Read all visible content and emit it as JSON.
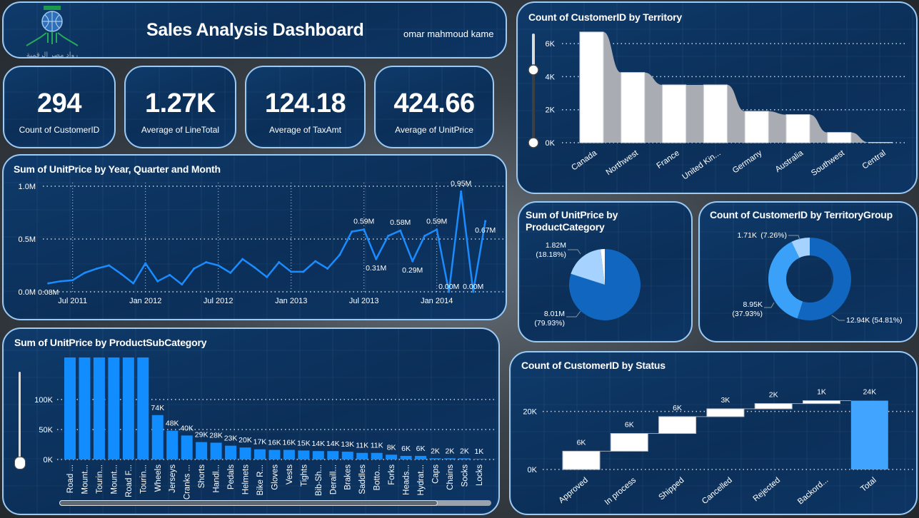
{
  "header": {
    "title": "Sales Analysis Dashboard",
    "author": "omar mahmoud kame",
    "logo_text": "رواد مصر الرقمية"
  },
  "kpis": [
    {
      "value": "294",
      "label": "Count of CustomerID"
    },
    {
      "value": "1.27K",
      "label": "Average of LineTotal"
    },
    {
      "value": "124.18",
      "label": "Average of TaxAmt"
    },
    {
      "value": "424.66",
      "label": "Average of UnitPrice"
    }
  ],
  "colors": {
    "line": "#1a8cff",
    "bar": "#118dff",
    "white_bar": "#ffffff",
    "ribbon": "#a9adb3",
    "total": "#41a4ff",
    "pie_dark": "#1167c0",
    "pie_mid": "#3ba0f8",
    "pie_light": "#a5d2ff",
    "panel_border": "#9ccaf3"
  },
  "chart_data": [
    {
      "type": "line",
      "title": "Sum of UnitPrice by Year, Quarter and Month",
      "x": [
        "2011-05",
        "2011-06",
        "2011-07",
        "2011-08",
        "2011-09",
        "2011-10",
        "2011-11",
        "2011-12",
        "2012-01",
        "2012-02",
        "2012-03",
        "2012-04",
        "2012-05",
        "2012-06",
        "2012-07",
        "2012-08",
        "2012-09",
        "2012-10",
        "2012-11",
        "2012-12",
        "2013-01",
        "2013-02",
        "2013-03",
        "2013-04",
        "2013-05",
        "2013-06",
        "2013-07",
        "2013-08",
        "2013-09",
        "2013-10",
        "2013-11",
        "2013-12",
        "2014-01",
        "2014-02",
        "2014-03",
        "2014-04",
        "2014-05"
      ],
      "values": [
        80000,
        100000,
        110000,
        180000,
        220000,
        250000,
        170000,
        80000,
        270000,
        100000,
        160000,
        70000,
        220000,
        280000,
        250000,
        180000,
        310000,
        230000,
        140000,
        280000,
        190000,
        190000,
        290000,
        220000,
        350000,
        570000,
        590000,
        310000,
        530000,
        580000,
        290000,
        530000,
        590000,
        0,
        950000,
        0,
        670000
      ],
      "data_labels": [
        "0.08M",
        "",
        "",
        "",
        "",
        "",
        "",
        "",
        "",
        "",
        "",
        "",
        "",
        "",
        "",
        "",
        "",
        "",
        "",
        "",
        "",
        "",
        "",
        "",
        "",
        "",
        "0.59M",
        "0.31M",
        "",
        "0.58M",
        "0.29M",
        "",
        "0.59M",
        "0.00M",
        "0.95M",
        "0.00M",
        "0.67M"
      ],
      "yticks": [
        {
          "value": 0,
          "label": "0.0M"
        },
        {
          "value": 500000,
          "label": "0.5M"
        },
        {
          "value": 1000000,
          "label": "1.0M"
        }
      ],
      "xticks": [
        {
          "x": "2011-07",
          "label": "Jul 2011"
        },
        {
          "x": "2012-01",
          "label": "Jan 2012"
        },
        {
          "x": "2012-07",
          "label": "Jul 2012"
        },
        {
          "x": "2013-01",
          "label": "Jan 2013"
        },
        {
          "x": "2013-07",
          "label": "Jul 2013"
        },
        {
          "x": "2014-01",
          "label": "Jan 2014"
        }
      ],
      "ylim": [
        0,
        1000000
      ],
      "grid": true
    },
    {
      "type": "bar",
      "title": "Sum of UnitPrice by ProductSubCategory",
      "categories": [
        "Road ...",
        "Mount...",
        "Tourin...",
        "Mount...",
        "Road F...",
        "Tourin...",
        "Wheels",
        "Jerseys",
        "Cranks ...",
        "Shorts",
        "Handl...",
        "Pedals",
        "Helmets",
        "Bike R...",
        "Gloves",
        "Vests",
        "Tights",
        "Bib-Sh...",
        "Deraill...",
        "Brakes",
        "Saddles",
        "Botto...",
        "Forks",
        "Heads...",
        "Hydrat...",
        "Caps",
        "Chains",
        "Socks",
        "Locks"
      ],
      "values": [
        null,
        null,
        null,
        null,
        null,
        null,
        74000,
        48000,
        40000,
        29000,
        28000,
        23000,
        20000,
        17000,
        16000,
        16000,
        15000,
        14000,
        14000,
        13000,
        11000,
        11000,
        8000,
        6000,
        6000,
        2000,
        2000,
        2000,
        1000
      ],
      "data_labels": [
        "",
        "",
        "",
        "",
        "",
        "",
        "74K",
        "48K",
        "40K",
        "29K",
        "28K",
        "23K",
        "20K",
        "17K",
        "16K",
        "16K",
        "15K",
        "14K",
        "14K",
        "13K",
        "11K",
        "11K",
        "8K",
        "6K",
        "6K",
        "2K",
        "2K",
        "2K",
        "1K"
      ],
      "yticks": [
        {
          "value": 0,
          "label": "0K"
        },
        {
          "value": 50000,
          "label": "50K"
        },
        {
          "value": 100000,
          "label": "100K"
        }
      ],
      "ylim": [
        0,
        170000
      ],
      "grid": true
    },
    {
      "type": "bar",
      "title": "Count of CustomerID by Territory",
      "categories": [
        "Canada",
        "Northwest",
        "France",
        "United Kin...",
        "Germany",
        "Australia",
        "Southwest",
        "Central"
      ],
      "values": [
        6700,
        4250,
        3500,
        3500,
        1900,
        1700,
        620,
        20
      ],
      "yticks": [
        {
          "value": 0,
          "label": "0K"
        },
        {
          "value": 2000,
          "label": "2K"
        },
        {
          "value": 4000,
          "label": "4K"
        },
        {
          "value": 6000,
          "label": "6K"
        }
      ],
      "ylim": [
        0,
        6700
      ],
      "grid": true
    },
    {
      "type": "pie",
      "title": "Sum of UnitPrice by ProductCategory",
      "slices": [
        {
          "value": 8010000,
          "percent": 79.93,
          "value_label": "8.01M",
          "percent_label": "(79.93%)",
          "color": "#1167c0"
        },
        {
          "value": 1820000,
          "percent": 18.18,
          "value_label": "1.82M",
          "percent_label": "(18.18%)",
          "color": "#a5d2ff"
        },
        {
          "value": 190000,
          "percent": 1.89,
          "value_label": "",
          "percent_label": "",
          "color": "#ffffff"
        }
      ]
    },
    {
      "type": "pie",
      "title": "Count of CustomerID by TerritoryGroup",
      "donut": true,
      "slices": [
        {
          "value": 12940,
          "percent": 54.81,
          "value_label": "12.94K",
          "percent_label": "(54.81%)",
          "color": "#1167c0"
        },
        {
          "value": 8950,
          "percent": 37.93,
          "value_label": "8.95K",
          "percent_label": "(37.93%)",
          "color": "#3ba0f8"
        },
        {
          "value": 1710,
          "percent": 7.26,
          "value_label": "1.71K",
          "percent_label": "(7.26%)",
          "color": "#a5d2ff"
        }
      ]
    },
    {
      "type": "bar",
      "subtype": "waterfall",
      "title": "Count of CustomerID by Status",
      "categories": [
        "Approved",
        "In process",
        "Shipped",
        "Cancelled",
        "Rejected",
        "Backord...",
        "Total"
      ],
      "values": [
        6300,
        6100,
        5800,
        2700,
        1800,
        1000,
        23700
      ],
      "data_labels": [
        "6K",
        "6K",
        "6K",
        "3K",
        "2K",
        "1K",
        "24K"
      ],
      "yticks": [
        {
          "value": 0,
          "label": "0K"
        },
        {
          "value": 20000,
          "label": "20K"
        }
      ],
      "grid": true
    }
  ]
}
